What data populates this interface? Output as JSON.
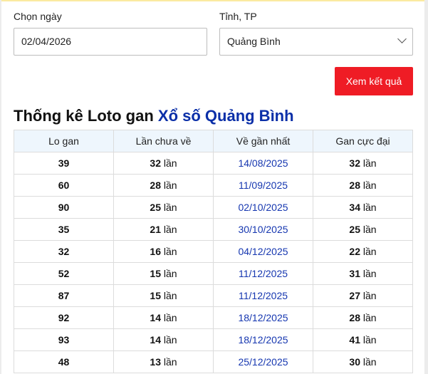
{
  "form": {
    "date_label": "Chọn ngày",
    "date_value": "02/04/2026",
    "province_label": "Tỉnh, TP",
    "province_value": "Quảng Bình",
    "submit_label": "Xem kết quả"
  },
  "title": {
    "prefix": "Thống kê Loto gan",
    "highlight": "Xổ số Quảng Bình"
  },
  "colors": {
    "accent": "#ef1c25",
    "link": "#1637b0",
    "header_bg": "#eef6fd"
  },
  "table": {
    "headers": [
      "Lo gan",
      "Lần chưa về",
      "Về gần nhất",
      "Gan cực đại"
    ],
    "unit": "lần",
    "rows": [
      {
        "lo": "39",
        "missed": "32",
        "last": "14/08/2025",
        "max": "32"
      },
      {
        "lo": "60",
        "missed": "28",
        "last": "11/09/2025",
        "max": "28"
      },
      {
        "lo": "90",
        "missed": "25",
        "last": "02/10/2025",
        "max": "34"
      },
      {
        "lo": "35",
        "missed": "21",
        "last": "30/10/2025",
        "max": "25"
      },
      {
        "lo": "32",
        "missed": "16",
        "last": "04/12/2025",
        "max": "22"
      },
      {
        "lo": "52",
        "missed": "15",
        "last": "11/12/2025",
        "max": "31"
      },
      {
        "lo": "87",
        "missed": "15",
        "last": "11/12/2025",
        "max": "27"
      },
      {
        "lo": "92",
        "missed": "14",
        "last": "18/12/2025",
        "max": "28"
      },
      {
        "lo": "93",
        "missed": "14",
        "last": "18/12/2025",
        "max": "41"
      },
      {
        "lo": "48",
        "missed": "13",
        "last": "25/12/2025",
        "max": "30"
      }
    ]
  }
}
